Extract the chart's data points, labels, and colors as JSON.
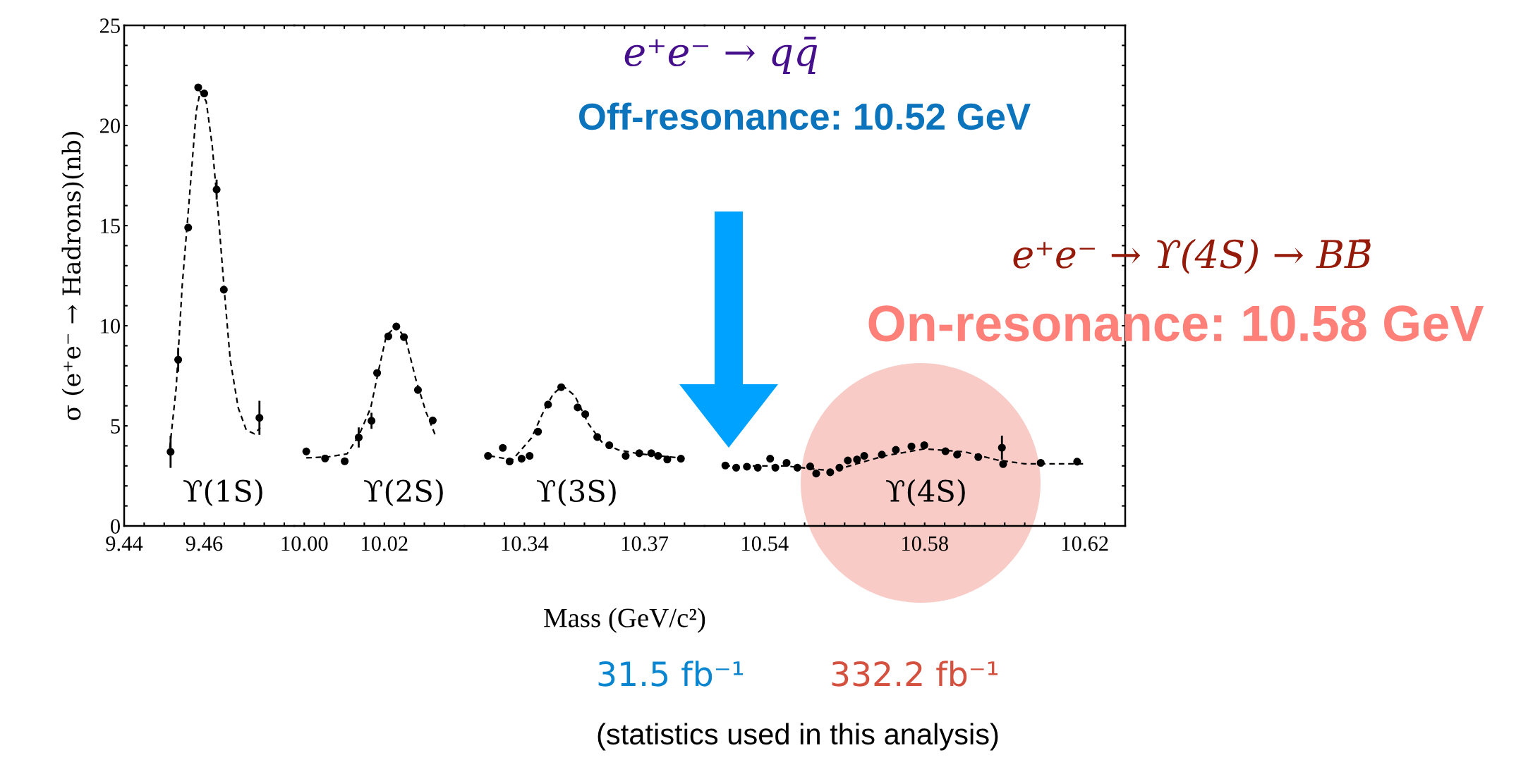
{
  "chart_data": [
    {
      "type": "scatter",
      "xlim": [
        9.44,
        9.4825
      ],
      "ylim": [
        0,
        25
      ],
      "ylabel": "σ (e⁺e⁻ → Hadrons)(nb)",
      "tick_labels": true,
      "xticks": [
        9.44,
        {
          "value": 9.445,
          "label": null
        },
        {
          "value": 9.45,
          "label": null
        },
        {
          "value": 9.455,
          "label": null
        },
        9.46,
        {
          "value": 9.465,
          "label": null
        },
        {
          "value": 9.47,
          "label": null
        },
        {
          "value": 9.475,
          "label": null
        },
        {
          "value": 9.48,
          "label": null
        }
      ],
      "yticks": [
        0,
        {
          "value": 1,
          "label": null
        },
        {
          "value": 2,
          "label": null
        },
        {
          "value": 3,
          "label": null
        },
        {
          "value": 4,
          "label": null
        },
        5,
        {
          "value": 6,
          "label": null
        },
        {
          "value": 7,
          "label": null
        },
        {
          "value": 8,
          "label": null
        },
        {
          "value": 9,
          "label": null
        },
        10,
        {
          "value": 11,
          "label": null
        },
        {
          "value": 12,
          "label": null
        },
        {
          "value": 13,
          "label": null
        },
        {
          "value": 14,
          "label": null
        },
        15,
        {
          "value": 16,
          "label": null
        },
        {
          "value": 17,
          "label": null
        },
        {
          "value": 18,
          "label": null
        },
        {
          "value": 19,
          "label": null
        },
        20,
        {
          "value": 21,
          "label": null
        },
        {
          "value": 22,
          "label": null
        },
        {
          "value": 23,
          "label": null
        },
        {
          "value": 24,
          "label": null
        },
        25
      ],
      "series": [
        {
          "marker": "circle",
          "color": "#000000",
          "x": [
            9.4516,
            9.4535,
            9.456,
            9.4585,
            9.46,
            9.4631,
            9.4649,
            9.4738
          ],
          "values": [
            3.7,
            8.3,
            14.9,
            21.9,
            21.6,
            16.8,
            11.8,
            5.4
          ],
          "errors": [
            0.8,
            0.6,
            null,
            null,
            null,
            0.5,
            null,
            0.85
          ]
        },
        {
          "type": "line",
          "color": "#000000",
          "line_style": "dashed",
          "x": [
            9.4514,
            9.453,
            9.4545,
            9.4563,
            9.458,
            9.459,
            9.4605,
            9.462,
            9.4635,
            9.465,
            9.4665,
            9.4685,
            9.4705,
            9.4725,
            9.474
          ],
          "values": [
            3.9,
            6.9,
            12.0,
            16.4,
            20.7,
            21.7,
            21.2,
            19.0,
            15.6,
            11.8,
            8.3,
            5.9,
            4.8,
            4.6,
            4.9
          ]
        }
      ],
      "annotations": [
        "ϒ(1S)"
      ]
    },
    {
      "type": "scatter",
      "xlim": [
        9.9975,
        10.04
      ],
      "ylim": [
        0,
        25
      ],
      "tick_labels": "x",
      "xticks": [
        {
          "value": 10.0,
          "label": "10.00"
        },
        {
          "value": 10.005,
          "label": null
        },
        {
          "value": 10.01,
          "label": null
        },
        {
          "value": 10.015,
          "label": null
        },
        {
          "value": 10.02,
          "label": "10.02"
        },
        {
          "value": 10.025,
          "label": null
        },
        {
          "value": 10.03,
          "label": null
        },
        {
          "value": 10.035,
          "label": null
        }
      ],
      "yticks": [
        0,
        5,
        10,
        15,
        20,
        25
      ],
      "series": [
        {
          "marker": "circle",
          "color": "#000000",
          "x": [
            10.0005,
            10.0052,
            10.0101,
            10.0136,
            10.0168,
            10.0182,
            10.021,
            10.023,
            10.0249,
            10.0284,
            10.0321
          ],
          "values": [
            3.72,
            3.37,
            3.23,
            4.42,
            5.25,
            7.64,
            9.47,
            9.96,
            9.43,
            6.79,
            5.27
          ],
          "errors": [
            null,
            null,
            null,
            0.5,
            0.4,
            null,
            null,
            null,
            null,
            null,
            null
          ]
        },
        {
          "type": "line",
          "color": "#000000",
          "line_style": "dashed",
          "x": [
            10.0005,
            10.006,
            10.0107,
            10.0136,
            10.0166,
            10.0186,
            10.0205,
            10.023,
            10.0254,
            10.0279,
            10.0304,
            10.0328
          ],
          "values": [
            3.4,
            3.45,
            3.6,
            4.5,
            5.9,
            7.8,
            9.5,
            10.0,
            9.3,
            7.3,
            5.7,
            4.5
          ]
        }
      ],
      "annotations": [
        "ϒ(2S)"
      ]
    },
    {
      "type": "scatter",
      "xlim": [
        10.325,
        10.385
      ],
      "ylim": [
        0,
        25
      ],
      "tick_labels": "x",
      "xlabel": "Mass (GeV/c²)",
      "xticks": [
        {
          "value": 10.33,
          "label": null
        },
        {
          "value": 10.335,
          "label": null
        },
        10.34,
        {
          "value": 10.345,
          "label": null
        },
        {
          "value": 10.35,
          "label": null
        },
        {
          "value": 10.355,
          "label": null
        },
        {
          "value": 10.36,
          "label": null
        },
        {
          "value": 10.365,
          "label": null
        },
        10.37,
        {
          "value": 10.375,
          "label": null
        },
        {
          "value": 10.38,
          "label": null
        }
      ],
      "yticks": [
        0,
        5,
        10,
        15,
        20,
        25
      ],
      "series": [
        {
          "marker": "circle",
          "color": "#000000",
          "x": [
            10.3309,
            10.3346,
            10.3363,
            10.3393,
            10.3413,
            10.3434,
            10.3459,
            10.3492,
            10.3533,
            10.3552,
            10.3582,
            10.3612,
            10.3653,
            10.3687,
            10.3717,
            10.3734,
            10.3757,
            10.3791
          ],
          "values": [
            3.5,
            3.9,
            3.22,
            3.36,
            3.5,
            4.71,
            6.06,
            6.93,
            5.92,
            5.58,
            4.44,
            4.03,
            3.5,
            3.63,
            3.63,
            3.5,
            3.32,
            3.36
          ]
        },
        {
          "type": "line",
          "color": "#000000",
          "line_style": "dashed",
          "x": [
            10.3313,
            10.337,
            10.3418,
            10.3445,
            10.3472,
            10.3496,
            10.3526,
            10.356,
            10.3593,
            10.3634,
            10.3687,
            10.3788
          ],
          "values": [
            3.5,
            3.3,
            4.4,
            5.6,
            6.6,
            7.0,
            6.5,
            5.1,
            4.2,
            3.8,
            3.6,
            3.4
          ]
        }
      ],
      "annotations": [
        "ϒ(3S)"
      ]
    },
    {
      "type": "scatter",
      "xlim": [
        10.525,
        10.6301
      ],
      "ylim": [
        0,
        25
      ],
      "tick_labels": "x",
      "xticks": [
        {
          "value": 10.53,
          "label": null
        },
        {
          "value": 10.535,
          "label": null
        },
        10.54,
        {
          "value": 10.545,
          "label": null
        },
        {
          "value": 10.55,
          "label": null
        },
        {
          "value": 10.555,
          "label": null
        },
        {
          "value": 10.56,
          "label": null
        },
        {
          "value": 10.565,
          "label": null
        },
        {
          "value": 10.57,
          "label": null
        },
        {
          "value": 10.575,
          "label": null
        },
        10.58,
        {
          "value": 10.585,
          "label": null
        },
        {
          "value": 10.59,
          "label": null
        },
        {
          "value": 10.595,
          "label": null
        },
        {
          "value": 10.6,
          "label": null
        },
        {
          "value": 10.605,
          "label": null
        },
        {
          "value": 10.61,
          "label": null
        },
        {
          "value": 10.615,
          "label": null
        },
        10.62,
        {
          "value": 10.625,
          "label": null
        }
      ],
      "yticks": [
        0,
        {
          "value": 1,
          "label": null
        },
        {
          "value": 2,
          "label": null
        },
        {
          "value": 3,
          "label": null
        },
        {
          "value": 4,
          "label": null
        },
        5,
        {
          "value": 6,
          "label": null
        },
        {
          "value": 7,
          "label": null
        },
        {
          "value": 8,
          "label": null
        },
        {
          "value": 9,
          "label": null
        },
        10,
        {
          "value": 11,
          "label": null
        },
        {
          "value": 12,
          "label": null
        },
        {
          "value": 13,
          "label": null
        },
        {
          "value": 14,
          "label": null
        },
        15,
        {
          "value": 16,
          "label": null
        },
        {
          "value": 17,
          "label": null
        },
        {
          "value": 18,
          "label": null
        },
        {
          "value": 19,
          "label": null
        },
        20,
        {
          "value": 21,
          "label": null
        },
        {
          "value": 22,
          "label": null
        },
        {
          "value": 23,
          "label": null
        },
        {
          "value": 24,
          "label": null
        },
        25
      ],
      "series": [
        {
          "marker": "circle",
          "color": "#000000",
          "x": [
            10.5302,
            10.5329,
            10.5356,
            10.5383,
            10.5414,
            10.5427,
            10.5455,
            10.5482,
            10.5514,
            10.5529,
            10.5564,
            10.5587,
            10.5608,
            10.5631,
            10.5649,
            10.5693,
            10.5728,
            10.5767,
            10.5799,
            10.5852,
            10.5881,
            10.5934,
            10.5993,
            10.5996,
            10.609,
            10.6181
          ],
          "values": [
            3.02,
            2.91,
            2.96,
            2.91,
            3.36,
            2.91,
            3.15,
            2.91,
            2.97,
            2.62,
            2.68,
            2.91,
            3.27,
            3.32,
            3.5,
            3.56,
            3.8,
            3.97,
            4.03,
            3.73,
            3.56,
            3.44,
            3.91,
            3.09,
            3.15,
            3.21
          ],
          "errors": [
            null,
            null,
            null,
            null,
            null,
            null,
            null,
            null,
            null,
            null,
            null,
            null,
            null,
            null,
            null,
            null,
            null,
            null,
            null,
            null,
            null,
            null,
            0.6,
            null,
            null,
            null
          ]
        },
        {
          "type": "line",
          "color": "#000000",
          "line_style": "dashed",
          "x": [
            10.53,
            10.545,
            10.552,
            10.557,
            10.563,
            10.57,
            10.58,
            10.59,
            10.598,
            10.605,
            10.62
          ],
          "values": [
            3.0,
            3.0,
            2.85,
            2.75,
            3.1,
            3.5,
            3.85,
            3.7,
            3.3,
            3.1,
            3.1
          ]
        }
      ],
      "annotations": [
        "ϒ(4S)",
        "e⁺e⁻ → qq̄",
        "Off-resonance: 10.52 GeV",
        "e⁺e⁻ → ϒ(4S) → BB̄",
        "On-resonance: 10.58 GeV",
        "31.5 fb⁻¹",
        "332.2 fb⁻¹",
        "(statistics used in this analysis)"
      ]
    }
  ]
}
